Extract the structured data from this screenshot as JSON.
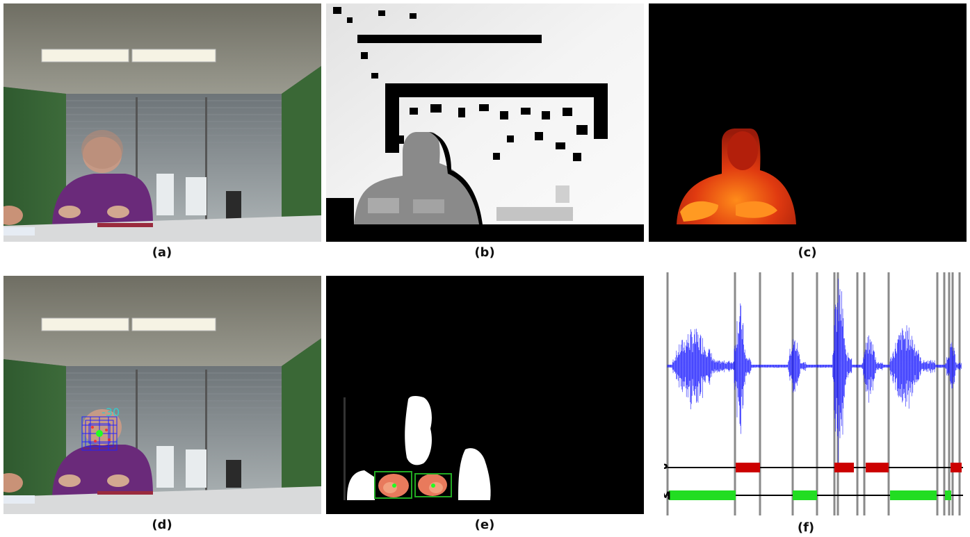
{
  "panels": [
    {
      "id": "a",
      "caption": "(a)"
    },
    {
      "id": "b",
      "caption": "(b)"
    },
    {
      "id": "c",
      "caption": "(c)"
    },
    {
      "id": "d",
      "caption": "(d)",
      "head_angle": "-30"
    },
    {
      "id": "e",
      "caption": "(e)"
    },
    {
      "id": "f",
      "caption": "(f)",
      "tracks": [
        {
          "label": "P",
          "color": "#cc0000"
        },
        {
          "label": "M",
          "color": "#22dd22"
        }
      ]
    }
  ],
  "colors": {
    "audio_waveform": "#1a1aff",
    "face_box": "#2222ff",
    "face_center": "#22ff22",
    "hand_box": "#22aa22",
    "angle_text": "#33cccc"
  }
}
